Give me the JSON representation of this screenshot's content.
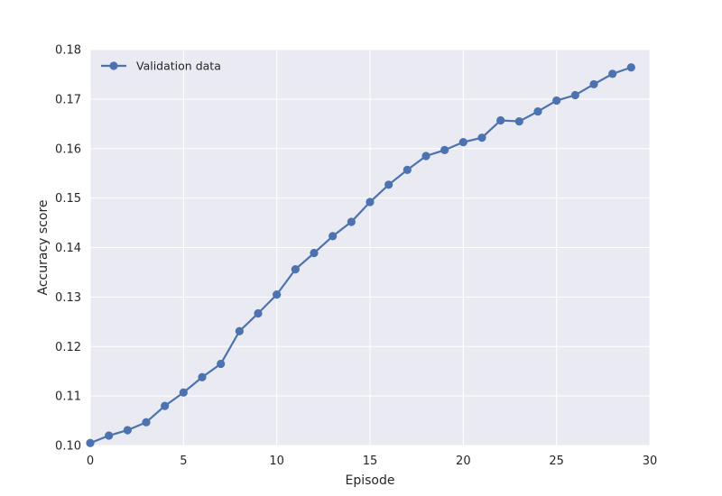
{
  "chart_data": {
    "type": "line",
    "title": "",
    "xlabel": "Episode",
    "ylabel": "Accuracy score",
    "xlim": [
      0,
      30
    ],
    "ylim": [
      0.1,
      0.18
    ],
    "x_ticks": [
      "0",
      "5",
      "10",
      "15",
      "20",
      "25",
      "30"
    ],
    "y_ticks": [
      "0.10",
      "0.11",
      "0.12",
      "0.13",
      "0.14",
      "0.15",
      "0.16",
      "0.17",
      "0.18"
    ],
    "grid": true,
    "legend_position": "top-left",
    "series": [
      {
        "name": "Validation data",
        "color": "#4c72b0",
        "marker": "circle",
        "x": [
          0,
          1,
          2,
          3,
          4,
          5,
          6,
          7,
          8,
          9,
          10,
          11,
          12,
          13,
          14,
          15,
          16,
          17,
          18,
          19,
          20,
          21,
          22,
          23,
          24,
          25,
          26,
          27,
          28,
          29
        ],
        "y": [
          0.1005,
          0.102,
          0.1031,
          0.1047,
          0.108,
          0.1107,
          0.1138,
          0.1165,
          0.1231,
          0.1267,
          0.1305,
          0.1356,
          0.1389,
          0.1423,
          0.1452,
          0.1492,
          0.1527,
          0.1557,
          0.1585,
          0.1597,
          0.1613,
          0.1622,
          0.1657,
          0.1655,
          0.1675,
          0.1697,
          0.1708,
          0.173,
          0.1751,
          0.1764
        ]
      }
    ]
  }
}
